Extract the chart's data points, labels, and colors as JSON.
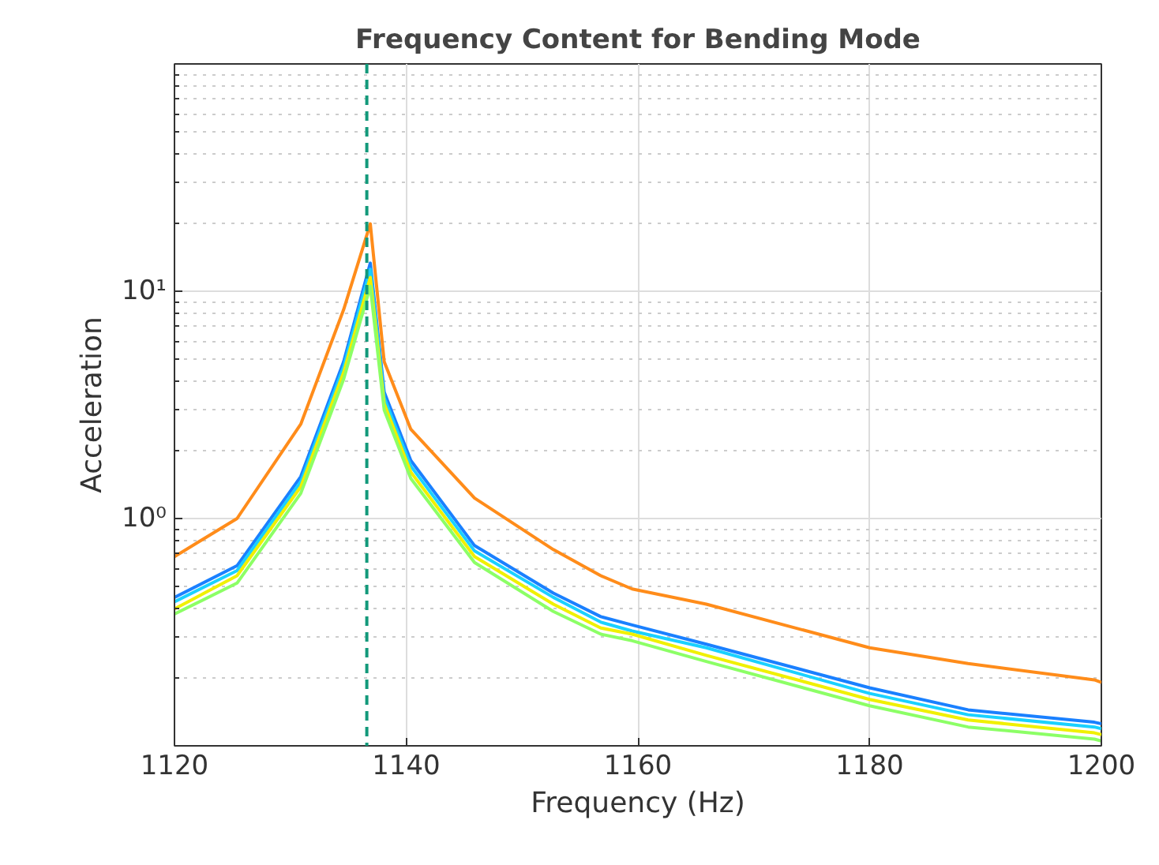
{
  "chart_data": {
    "type": "line",
    "title": "Frequency Content for Bending Mode",
    "xlabel": "Frequency (Hz)",
    "ylabel": "Acceleration",
    "x": [
      1120,
      1125.4,
      1130.9,
      1134.6,
      1136.9,
      1138.1,
      1140.4,
      1145.9,
      1152.7,
      1156.8,
      1159.5,
      1165.9,
      1180,
      1188.5,
      1199.4,
      1200
    ],
    "series": [
      {
        "color": "#1a80ff",
        "values": [
          0.45,
          0.62,
          1.53,
          4.9,
          13.3,
          3.6,
          1.8,
          0.76,
          0.47,
          0.37,
          0.34,
          0.28,
          0.18,
          0.144,
          0.127,
          0.125
        ]
      },
      {
        "color": "#1ad1ff",
        "values": [
          0.43,
          0.59,
          1.45,
          4.65,
          12.5,
          3.4,
          1.7,
          0.72,
          0.45,
          0.35,
          0.32,
          0.27,
          0.17,
          0.137,
          0.121,
          0.119
        ]
      },
      {
        "color": "#f0f000",
        "values": [
          0.4,
          0.56,
          1.38,
          4.4,
          11.5,
          3.2,
          1.6,
          0.68,
          0.42,
          0.33,
          0.31,
          0.25,
          0.16,
          0.13,
          0.114,
          0.112
        ]
      },
      {
        "color": "#8cff66",
        "values": [
          0.38,
          0.52,
          1.29,
          4.1,
          10.5,
          3.0,
          1.5,
          0.64,
          0.39,
          0.31,
          0.29,
          0.235,
          0.15,
          0.121,
          0.107,
          0.105
        ]
      },
      {
        "color": "#ff8c1a",
        "values": [
          0.68,
          1.0,
          2.6,
          8.3,
          19.8,
          4.9,
          2.47,
          1.23,
          0.73,
          0.56,
          0.49,
          0.42,
          0.27,
          0.23,
          0.195,
          0.19
        ]
      }
    ],
    "xlim": [
      1120,
      1200
    ],
    "xticks": [
      1120,
      1140,
      1160,
      1180,
      1200
    ],
    "ylim": [
      0.1,
      100
    ],
    "log": "y",
    "yticks": [
      {
        "value": 0.2,
        "label": null
      },
      {
        "value": 0.3,
        "label": null
      },
      {
        "value": 0.4,
        "label": null
      },
      {
        "value": 0.5,
        "label": null
      },
      {
        "value": 0.6,
        "label": null
      },
      {
        "value": 0.7,
        "label": null
      },
      {
        "value": 0.8,
        "label": null
      },
      {
        "value": 0.9,
        "label": null
      },
      {
        "value": 1,
        "label": "10⁰"
      },
      {
        "value": 2,
        "label": null
      },
      {
        "value": 3,
        "label": null
      },
      {
        "value": 4,
        "label": null
      },
      {
        "value": 5,
        "label": null
      },
      {
        "value": 6,
        "label": null
      },
      {
        "value": 7,
        "label": null
      },
      {
        "value": 8,
        "label": null
      },
      {
        "value": 9,
        "label": null
      },
      {
        "value": 10,
        "label": "10¹"
      },
      {
        "value": 20,
        "label": null
      },
      {
        "value": 30,
        "label": null
      },
      {
        "value": 40,
        "label": null
      },
      {
        "value": 50,
        "label": null
      },
      {
        "value": 60,
        "label": null
      },
      {
        "value": 70,
        "label": null
      },
      {
        "value": 80,
        "label": null
      },
      {
        "value": 90,
        "label": null
      }
    ],
    "grid": true,
    "ref_lines": [
      {
        "axis": "x",
        "value": 1136.6,
        "color": "#12997a",
        "line_style": "dashed"
      }
    ]
  }
}
